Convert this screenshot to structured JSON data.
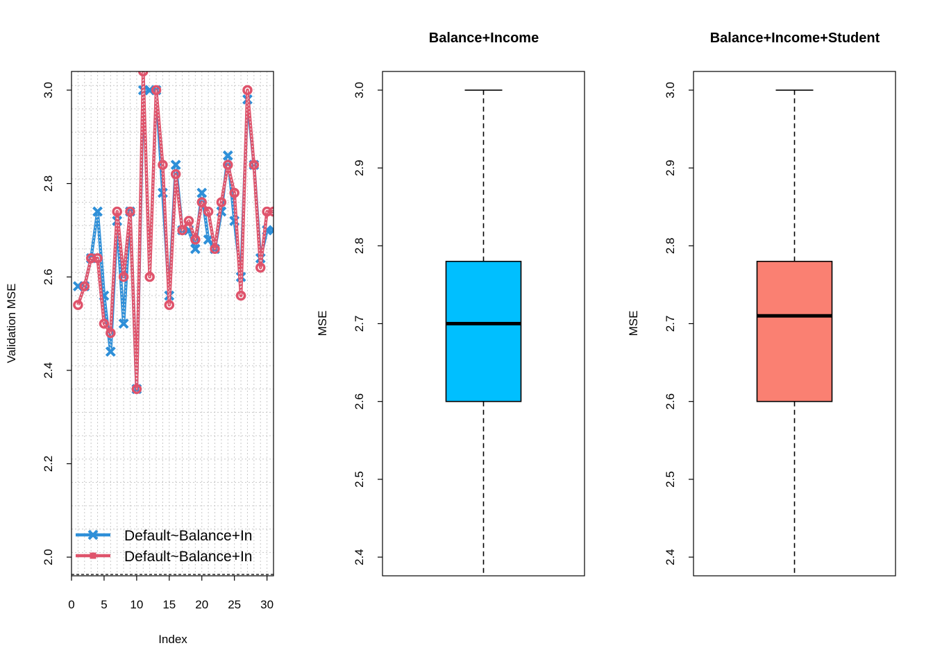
{
  "chart_data": [
    {
      "type": "line",
      "title": "",
      "xlabel": "Index",
      "ylabel": "Validation MSE",
      "xlim": [
        0,
        31
      ],
      "ylim": [
        1.96,
        3.04
      ],
      "x_ticks": [
        0,
        5,
        10,
        15,
        20,
        25,
        30
      ],
      "y_ticks": [
        2.0,
        2.2,
        2.4,
        2.6,
        2.8,
        3.0
      ],
      "grid": true,
      "legend_position": "bottom-left",
      "x": [
        1,
        2,
        3,
        4,
        5,
        6,
        7,
        8,
        9,
        10,
        11,
        12,
        13,
        14,
        15,
        16,
        17,
        18,
        19,
        20,
        21,
        22,
        23,
        24,
        25,
        26,
        27,
        28,
        29,
        30,
        31
      ],
      "series": [
        {
          "name": "Default~Balance+In",
          "color": "#2E8FD8",
          "marker": "x",
          "values": [
            2.58,
            2.58,
            2.64,
            2.74,
            2.56,
            2.44,
            2.72,
            2.5,
            2.74,
            2.36,
            3.0,
            3.0,
            3.0,
            2.78,
            2.56,
            2.84,
            2.7,
            2.7,
            2.66,
            2.78,
            2.68,
            2.66,
            2.74,
            2.86,
            2.72,
            2.6,
            2.98,
            2.84,
            2.64,
            2.7,
            2.7
          ]
        },
        {
          "name": "Default~Balance+In",
          "color": "#DF536B",
          "marker": "o",
          "values": [
            2.54,
            2.58,
            2.64,
            2.64,
            2.5,
            2.48,
            2.74,
            2.6,
            2.74,
            2.36,
            3.04,
            2.6,
            3.0,
            2.84,
            2.54,
            2.82,
            2.7,
            2.72,
            2.68,
            2.76,
            2.74,
            2.66,
            2.76,
            2.84,
            2.78,
            2.56,
            3.0,
            2.84,
            2.62,
            2.74,
            2.74
          ]
        }
      ]
    },
    {
      "type": "box",
      "title": "Balance+Income",
      "ylabel": "MSE",
      "ylim": [
        2.376,
        3.024
      ],
      "y_ticks": [
        2.4,
        2.5,
        2.6,
        2.7,
        2.8,
        2.9,
        3.0
      ],
      "fill": "#00BFFF",
      "stats": {
        "min": 2.36,
        "q1": 2.6,
        "median": 2.7,
        "q3": 2.78,
        "max": 3.0
      }
    },
    {
      "type": "box",
      "title": "Balance+Income+Student",
      "ylabel": "MSE",
      "ylim": [
        2.376,
        3.024
      ],
      "y_ticks": [
        2.4,
        2.5,
        2.6,
        2.7,
        2.8,
        2.9,
        3.0
      ],
      "fill": "#FA8072",
      "stats": {
        "min": 2.36,
        "q1": 2.6,
        "median": 2.71,
        "q3": 2.78,
        "max": 3.0
      }
    }
  ]
}
